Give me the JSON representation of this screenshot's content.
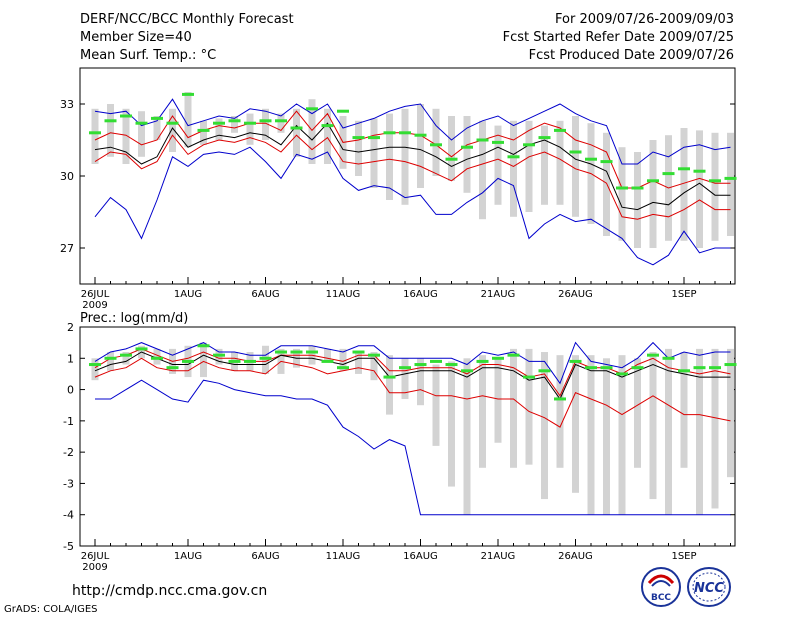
{
  "header": {
    "title": "DERF/NCC/BCC Monthly Forecast",
    "member_size": "Member Size=40",
    "variable": "Mean Surf. Temp.: °C",
    "period": "For 2009/07/26-2009/09/03",
    "fcst_started": "Fcst Started Refer Date 2009/07/25",
    "fcst_produced": "Fcst Produced Date 2009/07/26"
  },
  "footer": {
    "url": "http://cmdp.ncc.cma.gov.cn",
    "credit": "GrADS: COLA/IGES",
    "logo_left_text": "BCC",
    "logo_right_text": "NCC"
  },
  "colors": {
    "bar": "#d3d3d3",
    "median": "#33dd33",
    "mean": "#000000",
    "spread": "#dd0000",
    "envelope": "#0000cc"
  },
  "chart_data": [
    {
      "type": "line",
      "title": "Mean Surf. Temp.: °C",
      "ylim": [
        25.5,
        34.5
      ],
      "yticks": [
        27,
        30,
        33
      ],
      "xtick_days": [
        0,
        6,
        11,
        16,
        21,
        26,
        31,
        38
      ],
      "xtick_labels": [
        "26JUL",
        "1AUG",
        "6AUG",
        "11AUG",
        "16AUG",
        "21AUG",
        "26AUG",
        "1SEP"
      ],
      "year_label": "2009",
      "bars": {
        "low": [
          30.5,
          30.8,
          30.5,
          30.8,
          31.5,
          31.0,
          31.2,
          31.3,
          31.5,
          31.8,
          31.3,
          31.5,
          31.8,
          30.8,
          30.5,
          30.5,
          30.3,
          30.0,
          29.5,
          29.0,
          28.8,
          29.5,
          30.0,
          29.8,
          29.3,
          28.2,
          28.8,
          28.3,
          28.5,
          28.8,
          28.8,
          28.3,
          28.0,
          27.5,
          27.3,
          27.0,
          27.0,
          27.3,
          27.3,
          27.0,
          27.3,
          27.5
        ],
        "high": [
          32.8,
          33.0,
          32.8,
          32.7,
          32.5,
          32.8,
          33.5,
          32.3,
          32.4,
          32.5,
          32.6,
          32.8,
          32.6,
          32.8,
          33.2,
          32.8,
          32.5,
          32.3,
          32.4,
          32.6,
          32.8,
          33.0,
          32.8,
          32.5,
          32.5,
          32.3,
          32.1,
          32.3,
          32.3,
          32.1,
          32.3,
          32.5,
          32.2,
          31.8,
          31.2,
          31.0,
          31.5,
          31.7,
          32.0,
          31.9,
          31.8,
          31.8
        ],
        "median": [
          31.8,
          32.3,
          32.5,
          32.2,
          32.4,
          32.2,
          33.4,
          31.9,
          32.2,
          32.3,
          32.2,
          32.3,
          32.3,
          32.0,
          32.8,
          32.1,
          32.7,
          31.6,
          31.6,
          31.8,
          31.8,
          31.7,
          31.3,
          30.7,
          31.2,
          31.5,
          31.4,
          30.8,
          31.3,
          31.6,
          31.9,
          31.0,
          30.7,
          30.6,
          29.5,
          29.5,
          29.8,
          30.1,
          30.3,
          30.2,
          29.8,
          29.9
        ]
      },
      "series": [
        {
          "name": "upper",
          "values": [
            32.7,
            32.6,
            32.7,
            32.1,
            32.3,
            33.2,
            32.1,
            32.3,
            32.5,
            32.4,
            32.8,
            32.7,
            32.5,
            33.0,
            32.6,
            33.0,
            32.0,
            32.2,
            32.4,
            32.7,
            32.9,
            33.0,
            32.1,
            31.5,
            32.0,
            32.3,
            32.5,
            32.1,
            32.4,
            32.7,
            33.0,
            32.6,
            32.3,
            32.1,
            30.5,
            30.5,
            31.0,
            30.8,
            31.2,
            31.3,
            31.1,
            31.2
          ]
        },
        {
          "name": "plus-spread",
          "values": [
            31.5,
            31.8,
            31.7,
            31.3,
            31.5,
            32.5,
            31.6,
            31.9,
            32.1,
            32.0,
            32.2,
            32.2,
            31.9,
            32.7,
            31.9,
            32.6,
            31.4,
            31.5,
            31.7,
            31.8,
            31.8,
            31.7,
            31.3,
            30.8,
            31.3,
            31.5,
            31.7,
            31.5,
            31.9,
            32.2,
            32.0,
            31.5,
            31.3,
            31.0,
            29.5,
            29.5,
            29.8,
            29.5,
            29.7,
            29.9,
            29.7,
            29.7
          ]
        },
        {
          "name": "mean",
          "values": [
            31.1,
            31.2,
            31.0,
            30.5,
            30.8,
            32.0,
            31.2,
            31.5,
            31.7,
            31.6,
            31.8,
            31.7,
            31.3,
            32.1,
            31.5,
            32.2,
            31.1,
            31.0,
            31.1,
            31.2,
            31.2,
            31.1,
            30.8,
            30.4,
            30.7,
            30.9,
            31.2,
            30.9,
            31.3,
            31.5,
            31.2,
            30.7,
            30.5,
            30.2,
            28.7,
            28.6,
            28.9,
            28.8,
            29.3,
            29.7,
            29.2,
            29.2
          ]
        },
        {
          "name": "minus-spread",
          "values": [
            30.6,
            31.0,
            30.9,
            30.3,
            30.6,
            31.7,
            30.9,
            31.3,
            31.5,
            31.4,
            31.6,
            31.4,
            31.0,
            31.7,
            31.1,
            31.6,
            30.6,
            30.5,
            30.6,
            30.7,
            30.6,
            30.4,
            30.1,
            29.8,
            30.3,
            30.5,
            30.7,
            30.4,
            30.8,
            31.0,
            30.7,
            30.3,
            30.1,
            29.7,
            28.3,
            28.2,
            28.4,
            28.3,
            28.6,
            29.0,
            28.6,
            28.6
          ]
        },
        {
          "name": "lower",
          "values": [
            28.3,
            29.1,
            28.6,
            27.4,
            29.0,
            30.8,
            30.4,
            30.9,
            31.0,
            30.9,
            31.2,
            30.6,
            29.9,
            30.9,
            30.7,
            31.0,
            29.9,
            29.4,
            29.6,
            29.5,
            29.1,
            29.2,
            28.4,
            28.4,
            28.9,
            29.3,
            29.9,
            29.6,
            27.4,
            28.0,
            28.4,
            28.1,
            28.2,
            27.8,
            27.4,
            26.6,
            26.3,
            26.7,
            27.7,
            26.8,
            27.0,
            27.0
          ]
        }
      ]
    },
    {
      "type": "line",
      "title": "Prec.: log(mm/d)",
      "ylim": [
        -5,
        2
      ],
      "yticks": [
        -5,
        -4,
        -3,
        -2,
        -1,
        0,
        1,
        2
      ],
      "xtick_days": [
        0,
        6,
        11,
        16,
        21,
        26,
        31,
        38
      ],
      "xtick_labels": [
        "26JUL",
        "1AUG",
        "6AUG",
        "11AUG",
        "16AUG",
        "21AUG",
        "26AUG",
        "1SEP"
      ],
      "year_label": "2009",
      "bars": {
        "low": [
          0.3,
          0.6,
          0.8,
          1.0,
          0.8,
          0.5,
          0.4,
          0.4,
          0.8,
          0.6,
          0.6,
          0.5,
          0.5,
          0.7,
          0.8,
          0.9,
          0.6,
          0.5,
          0.3,
          -0.8,
          -0.3,
          -0.5,
          -1.8,
          -3.1,
          -4.0,
          -2.5,
          -1.7,
          -2.5,
          -2.4,
          -3.5,
          -2.5,
          -3.3,
          -4.0,
          -4.0,
          -4.0,
          -2.5,
          -3.5,
          -4.0,
          -2.5,
          -4.0,
          -3.8,
          -2.8
        ],
        "high": [
          1.0,
          1.2,
          1.2,
          1.4,
          1.3,
          1.3,
          1.4,
          1.5,
          1.3,
          1.2,
          1.2,
          1.4,
          1.3,
          1.3,
          1.4,
          1.3,
          1.3,
          1.2,
          1.2,
          1.1,
          1.0,
          1.0,
          0.8,
          0.9,
          1.0,
          1.1,
          1.0,
          1.3,
          1.3,
          1.2,
          1.1,
          1.1,
          1.1,
          1.0,
          1.1,
          1.0,
          1.2,
          1.3,
          1.2,
          1.3,
          1.3,
          1.3
        ],
        "median": [
          0.8,
          1.0,
          1.1,
          1.3,
          1.0,
          0.7,
          0.9,
          1.4,
          1.1,
          0.9,
          0.9,
          1.0,
          1.2,
          1.2,
          1.2,
          0.9,
          0.7,
          1.2,
          1.1,
          0.4,
          0.7,
          0.8,
          0.9,
          0.8,
          0.6,
          0.9,
          1.0,
          1.1,
          0.4,
          0.6,
          -0.3,
          0.9,
          0.7,
          0.7,
          0.5,
          0.7,
          1.1,
          1.0,
          0.6,
          0.7,
          0.7,
          0.8
        ]
      },
      "series": [
        {
          "name": "upper",
          "values": [
            0.9,
            1.2,
            1.3,
            1.5,
            1.3,
            1.1,
            1.3,
            1.5,
            1.2,
            1.2,
            1.1,
            1.1,
            1.4,
            1.4,
            1.4,
            1.3,
            1.2,
            1.4,
            1.4,
            1.0,
            1.0,
            1.0,
            1.0,
            1.0,
            0.8,
            1.2,
            1.1,
            1.2,
            0.9,
            0.9,
            0.2,
            1.5,
            0.9,
            0.8,
            0.7,
            1.0,
            1.5,
            1.0,
            1.2,
            1.1,
            1.2,
            1.2
          ]
        },
        {
          "name": "plus-spread",
          "values": [
            0.7,
            1.0,
            1.1,
            1.3,
            1.1,
            0.9,
            1.0,
            1.2,
            1.0,
            1.0,
            0.9,
            0.9,
            1.1,
            1.1,
            1.1,
            1.0,
            0.9,
            1.1,
            1.1,
            0.6,
            0.6,
            0.7,
            0.7,
            0.7,
            0.5,
            0.8,
            0.8,
            0.7,
            0.4,
            0.5,
            -0.2,
            0.9,
            0.7,
            0.7,
            0.5,
            0.8,
            1.0,
            0.7,
            0.6,
            0.5,
            0.6,
            0.5
          ]
        },
        {
          "name": "mean",
          "values": [
            0.6,
            0.8,
            0.9,
            1.2,
            1.0,
            0.8,
            0.8,
            1.1,
            0.9,
            0.8,
            0.8,
            0.8,
            1.1,
            1.0,
            1.0,
            0.9,
            0.8,
            1.0,
            1.0,
            0.4,
            0.5,
            0.6,
            0.6,
            0.6,
            0.4,
            0.7,
            0.7,
            0.6,
            0.3,
            0.4,
            -0.3,
            0.8,
            0.6,
            0.6,
            0.4,
            0.6,
            0.8,
            0.6,
            0.5,
            0.4,
            0.4,
            0.4
          ]
        },
        {
          "name": "minus-spread",
          "values": [
            0.4,
            0.6,
            0.7,
            1.0,
            0.7,
            0.6,
            0.6,
            0.9,
            0.7,
            0.6,
            0.6,
            0.5,
            0.9,
            0.8,
            0.7,
            0.5,
            0.6,
            0.7,
            0.6,
            -0.1,
            -0.1,
            0.0,
            -0.2,
            -0.2,
            -0.3,
            -0.2,
            -0.3,
            -0.3,
            -0.7,
            -0.9,
            -1.2,
            -0.1,
            -0.3,
            -0.5,
            -0.8,
            -0.5,
            -0.2,
            -0.5,
            -0.8,
            -0.8,
            -0.9,
            -1.0
          ]
        },
        {
          "name": "lower",
          "values": [
            -0.3,
            -0.3,
            0.0,
            0.3,
            0.0,
            -0.3,
            -0.4,
            0.3,
            0.2,
            0.0,
            -0.1,
            -0.2,
            -0.2,
            -0.3,
            -0.3,
            -0.5,
            -1.2,
            -1.5,
            -1.9,
            -1.6,
            -1.8,
            -4.0,
            -4.0,
            -4.0,
            -4.0,
            -4.0,
            -4.0,
            -4.0,
            -4.0,
            -4.0,
            -4.0,
            -4.0,
            -4.0,
            -4.0,
            -4.0,
            -4.0,
            -4.0,
            -4.0,
            -4.0,
            -4.0,
            -4.0,
            -4.0
          ]
        }
      ]
    }
  ]
}
